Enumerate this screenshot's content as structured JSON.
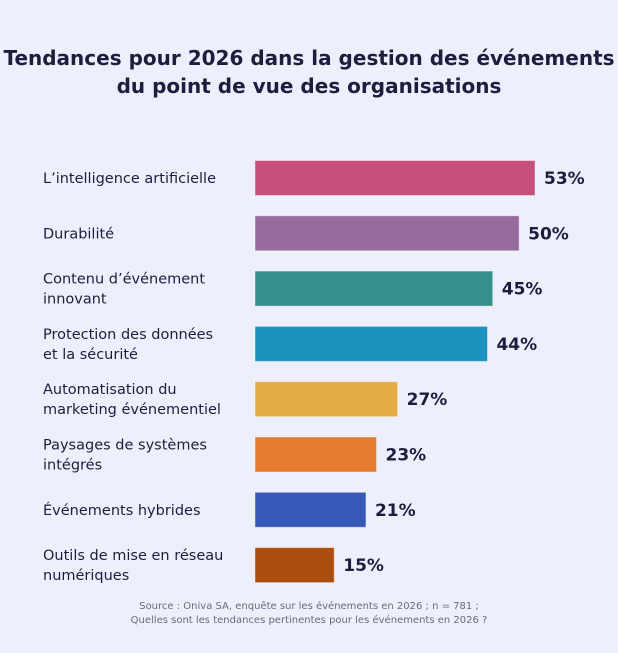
{
  "chart_data": {
    "type": "bar",
    "orientation": "horizontal",
    "title": [
      "Tendances pour 2026 dans la gestion des événements",
      "du point de vue des organisations"
    ],
    "categories": [
      [
        "L’intelligence artificielle"
      ],
      [
        "Durabilité"
      ],
      [
        "Contenu d’événement",
        "innovant"
      ],
      [
        "Protection des données",
        "et la sécurité"
      ],
      [
        "Automatisation du",
        "marketing événementiel"
      ],
      [
        "Paysages de systèmes",
        "intégrés"
      ],
      [
        "Événements hybrides"
      ],
      [
        "Outils de mise en réseau",
        "numériques"
      ]
    ],
    "values": [
      53,
      50,
      45,
      44,
      27,
      23,
      21,
      15
    ],
    "value_labels": [
      "53%",
      "50%",
      "45%",
      "44%",
      "27%",
      "23%",
      "21%",
      "15%"
    ],
    "colors": [
      "#c64f7e",
      "#976c9c",
      "#36908c",
      "#1b93bd",
      "#e2ab43",
      "#e57c2f",
      "#3659b7",
      "#a94e0e"
    ],
    "xlim": [
      0,
      53
    ],
    "grid": false,
    "legend": "none",
    "source": [
      "Source : Oniva SA, enquête sur les événements en 2026 ; n = 781 ;",
      "Quelles sont les tendances pertinentes pour les événements en 2026 ?"
    ]
  }
}
